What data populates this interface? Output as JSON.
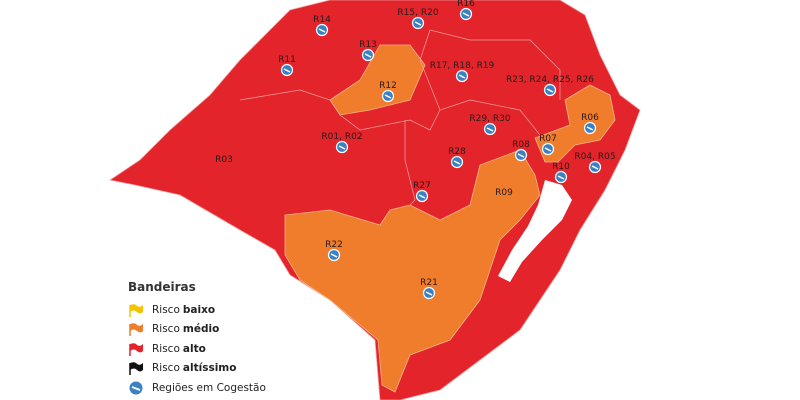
{
  "colors": {
    "low": "#f5c400",
    "medium": "#ef7d2b",
    "high": "#e3242b",
    "very_high": "#111111",
    "cogestao": "#3a82c4",
    "border": "#f2a0a0"
  },
  "regions": [
    {
      "label": "R14",
      "cogestao": true,
      "risk": "high"
    },
    {
      "label": "R15, R20",
      "cogestao": true,
      "risk": "high"
    },
    {
      "label": "R16",
      "cogestao": true,
      "risk": "high"
    },
    {
      "label": "R13",
      "cogestao": true,
      "risk": "high"
    },
    {
      "label": "R11",
      "cogestao": true,
      "risk": "high"
    },
    {
      "label": "R12",
      "cogestao": true,
      "risk": "medium"
    },
    {
      "label": "R17, R18, R19",
      "cogestao": true,
      "risk": "high"
    },
    {
      "label": "R23, R24, R25, R26",
      "cogestao": true,
      "risk": "high"
    },
    {
      "label": "R06",
      "cogestao": true,
      "risk": "medium"
    },
    {
      "label": "R29, R30",
      "cogestao": true,
      "risk": "high"
    },
    {
      "label": "R01, R02",
      "cogestao": true,
      "risk": "high"
    },
    {
      "label": "R08",
      "cogestao": true,
      "risk": "high"
    },
    {
      "label": "R07",
      "cogestao": true,
      "risk": "medium"
    },
    {
      "label": "R28",
      "cogestao": true,
      "risk": "high"
    },
    {
      "label": "R10",
      "cogestao": true,
      "risk": "high"
    },
    {
      "label": "R04, R05",
      "cogestao": true,
      "risk": "high"
    },
    {
      "label": "R03",
      "cogestao": false,
      "risk": "high"
    },
    {
      "label": "R27",
      "cogestao": true,
      "risk": "high"
    },
    {
      "label": "R09",
      "cogestao": false,
      "risk": "medium"
    },
    {
      "label": "R22",
      "cogestao": true,
      "risk": "medium"
    },
    {
      "label": "R21",
      "cogestao": true,
      "risk": "medium"
    }
  ],
  "legend": {
    "title": "Bandeiras",
    "items": [
      {
        "prefix": "Risco",
        "bold": "baixo",
        "icon": "flag-icon",
        "color": "#f5c400"
      },
      {
        "prefix": "Risco",
        "bold": "médio",
        "icon": "flag-icon",
        "color": "#ef7d2b"
      },
      {
        "prefix": "Risco",
        "bold": "alto",
        "icon": "flag-icon",
        "color": "#e3242b"
      },
      {
        "prefix": "Risco",
        "bold": "altíssimo",
        "icon": "flag-icon",
        "color": "#111111"
      },
      {
        "prefix": "Regiões em Cogestão",
        "bold": "",
        "icon": "cogestao-icon",
        "color": "#3a82c4"
      }
    ]
  }
}
